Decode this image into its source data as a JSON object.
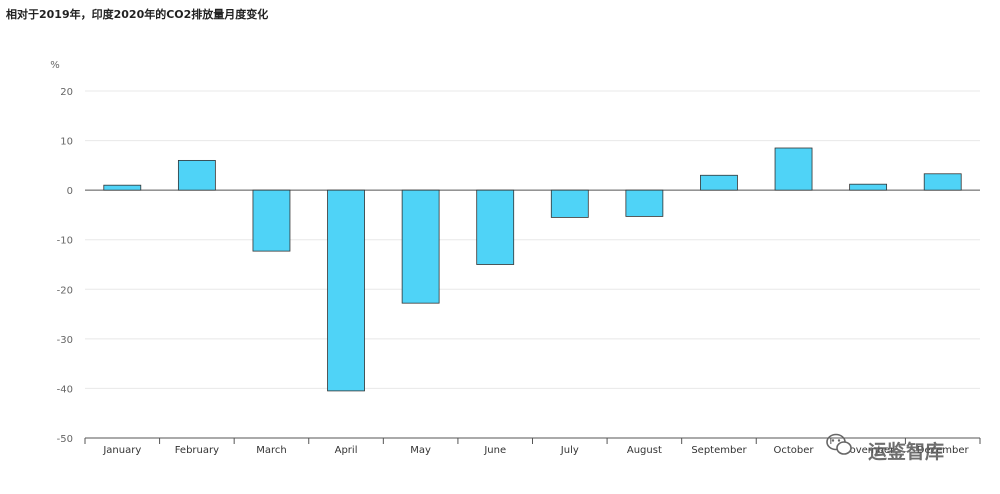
{
  "chart_data": {
    "type": "bar",
    "title": "相对于2019年，印度2020年的CO2排放量月度变化",
    "ylabel": "%",
    "xlabel": "",
    "ylim": [
      -50,
      20
    ],
    "yticks": [
      20,
      10,
      0,
      -10,
      -20,
      -30,
      -40,
      -50
    ],
    "categories": [
      "January",
      "February",
      "March",
      "April",
      "May",
      "June",
      "July",
      "August",
      "September",
      "October",
      "November",
      "December"
    ],
    "values": [
      1,
      6,
      -12.3,
      -40.5,
      -22.8,
      -15,
      -5.5,
      -5.3,
      3,
      8.5,
      1.2,
      3.3
    ],
    "grid": true,
    "bar_color": "#4fd3f7"
  },
  "watermark": {
    "text": "运鉴智库",
    "icon": "wechat-icon"
  }
}
